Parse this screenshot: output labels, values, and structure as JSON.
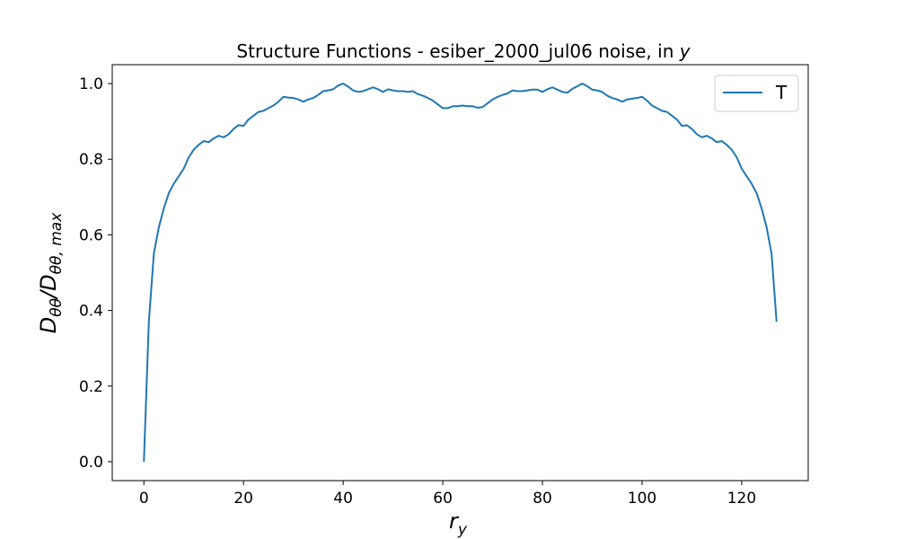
{
  "chart_data": {
    "type": "line",
    "title": {
      "main": "Structure Functions - esiber_2000_jul06 noise, in ",
      "var": "y"
    },
    "xlabel": {
      "base": "r",
      "sub": "y"
    },
    "ylabel": {
      "base": "D",
      "sub1": "θθ",
      "mid": "/D",
      "sub2": "θθ, max"
    },
    "xlim": [
      -6.35,
      133.35
    ],
    "ylim": [
      -0.05,
      1.05
    ],
    "x_ticks": [
      0,
      20,
      40,
      60,
      80,
      100,
      120
    ],
    "x_tick_labels": [
      "0",
      "20",
      "40",
      "60",
      "80",
      "100",
      "120"
    ],
    "y_ticks": [
      0.0,
      0.2,
      0.4,
      0.6,
      0.8,
      1.0
    ],
    "y_tick_labels": [
      "0.0",
      "0.2",
      "0.4",
      "0.6",
      "0.8",
      "1.0"
    ],
    "grid": false,
    "legend_position": "top-right",
    "series": [
      {
        "name": "T",
        "color": "#1f77b4",
        "x": [
          0,
          1,
          2,
          3,
          4,
          5,
          6,
          7,
          8,
          9,
          10,
          11,
          12,
          13,
          14,
          15,
          16,
          17,
          18,
          19,
          20,
          21,
          22,
          23,
          24,
          25,
          26,
          27,
          28,
          29,
          30,
          31,
          32,
          33,
          34,
          35,
          36,
          37,
          38,
          39,
          40,
          41,
          42,
          43,
          44,
          45,
          46,
          47,
          48,
          49,
          50,
          51,
          52,
          53,
          54,
          55,
          56,
          57,
          58,
          59,
          60,
          61,
          62,
          63,
          64,
          65,
          66,
          67,
          68,
          69,
          70,
          71,
          72,
          73,
          74,
          75,
          76,
          77,
          78,
          79,
          80,
          81,
          82,
          83,
          84,
          85,
          86,
          87,
          88,
          89,
          90,
          91,
          92,
          93,
          94,
          95,
          96,
          97,
          98,
          99,
          100,
          101,
          102,
          103,
          104,
          105,
          106,
          107,
          108,
          109,
          110,
          111,
          112,
          113,
          114,
          115,
          116,
          117,
          118,
          119,
          120,
          121,
          122,
          123,
          124,
          125,
          126,
          127
        ],
        "values": [
          0.0,
          0.37,
          0.55,
          0.62,
          0.67,
          0.71,
          0.735,
          0.755,
          0.775,
          0.805,
          0.825,
          0.838,
          0.848,
          0.845,
          0.855,
          0.862,
          0.858,
          0.866,
          0.88,
          0.89,
          0.888,
          0.905,
          0.915,
          0.925,
          0.928,
          0.935,
          0.942,
          0.952,
          0.965,
          0.963,
          0.962,
          0.958,
          0.952,
          0.958,
          0.962,
          0.97,
          0.98,
          0.982,
          0.985,
          0.995,
          1.0,
          0.992,
          0.982,
          0.978,
          0.98,
          0.985,
          0.99,
          0.985,
          0.978,
          0.985,
          0.982,
          0.98,
          0.98,
          0.978,
          0.98,
          0.972,
          0.968,
          0.962,
          0.955,
          0.945,
          0.935,
          0.935,
          0.94,
          0.94,
          0.942,
          0.94,
          0.94,
          0.936,
          0.938,
          0.948,
          0.958,
          0.965,
          0.97,
          0.974,
          0.982,
          0.98,
          0.98,
          0.982,
          0.984,
          0.984,
          0.978,
          0.985,
          0.99,
          0.984,
          0.978,
          0.976,
          0.986,
          0.993,
          1.0,
          0.993,
          0.984,
          0.982,
          0.978,
          0.968,
          0.962,
          0.958,
          0.952,
          0.958,
          0.96,
          0.962,
          0.965,
          0.955,
          0.942,
          0.935,
          0.928,
          0.925,
          0.915,
          0.905,
          0.888,
          0.89,
          0.88,
          0.866,
          0.858,
          0.862,
          0.855,
          0.845,
          0.848,
          0.838,
          0.825,
          0.805,
          0.775,
          0.755,
          0.735,
          0.71,
          0.67,
          0.62,
          0.55,
          0.37
        ]
      }
    ]
  }
}
